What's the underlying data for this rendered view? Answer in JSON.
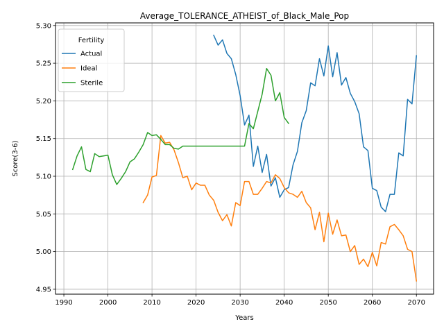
{
  "chart_data": {
    "type": "line",
    "title": "Average_TOLERANCE_ATHEIST_of_Black_Male_Pop",
    "xlabel": "Years",
    "ylabel": "Score(3-6)",
    "xlim": [
      1988.1,
      2073.9
    ],
    "ylim": [
      4.9435,
      5.3035
    ],
    "xticks": [
      1990,
      2000,
      2010,
      2020,
      2030,
      2040,
      2050,
      2060,
      2070
    ],
    "xtick_labels": [
      "1990",
      "2000",
      "2010",
      "2020",
      "2030",
      "2040",
      "2050",
      "2060",
      "2070"
    ],
    "yticks": [
      4.95,
      5.0,
      5.05,
      5.1,
      5.15,
      5.2,
      5.25,
      5.3
    ],
    "ytick_labels": [
      "4.95",
      "5.00",
      "5.05",
      "5.10",
      "5.15",
      "5.20",
      "5.25",
      "5.30"
    ],
    "grid": true,
    "legend": {
      "title": "Fertility",
      "position": "top-left"
    },
    "series": [
      {
        "name": "Actual",
        "color": "#1f77b4",
        "points": [
          [
            2024,
            5.287
          ],
          [
            2025,
            5.274
          ],
          [
            2026,
            5.281
          ],
          [
            2027,
            5.263
          ],
          [
            2028,
            5.256
          ],
          [
            2029,
            5.235
          ],
          [
            2030,
            5.207
          ],
          [
            2031,
            5.168
          ],
          [
            2032,
            5.181
          ],
          [
            2033,
            5.113
          ],
          [
            2034,
            5.14
          ],
          [
            2035,
            5.105
          ],
          [
            2036,
            5.129
          ],
          [
            2037,
            5.087
          ],
          [
            2038,
            5.098
          ],
          [
            2039,
            5.072
          ],
          [
            2040,
            5.082
          ],
          [
            2041,
            5.085
          ],
          [
            2042,
            5.115
          ],
          [
            2043,
            5.133
          ],
          [
            2044,
            5.171
          ],
          [
            2045,
            5.187
          ],
          [
            2046,
            5.224
          ],
          [
            2047,
            5.22
          ],
          [
            2048,
            5.256
          ],
          [
            2049,
            5.233
          ],
          [
            2050,
            5.273
          ],
          [
            2051,
            5.232
          ],
          [
            2052,
            5.264
          ],
          [
            2053,
            5.221
          ],
          [
            2054,
            5.231
          ],
          [
            2055,
            5.21
          ],
          [
            2056,
            5.199
          ],
          [
            2057,
            5.183
          ],
          [
            2058,
            5.139
          ],
          [
            2059,
            5.134
          ],
          [
            2060,
            5.084
          ],
          [
            2061,
            5.081
          ],
          [
            2062,
            5.059
          ],
          [
            2063,
            5.053
          ],
          [
            2064,
            5.076
          ],
          [
            2065,
            5.076
          ],
          [
            2066,
            5.131
          ],
          [
            2067,
            5.127
          ],
          [
            2068,
            5.202
          ],
          [
            2069,
            5.196
          ],
          [
            2070,
            5.26
          ]
        ]
      },
      {
        "name": "Ideal",
        "color": "#ff7f0e",
        "points": [
          [
            2008,
            5.065
          ],
          [
            2009,
            5.075
          ],
          [
            2010,
            5.099
          ],
          [
            2011,
            5.101
          ],
          [
            2012,
            5.154
          ],
          [
            2013,
            5.144
          ],
          [
            2014,
            5.145
          ],
          [
            2015,
            5.135
          ],
          [
            2016,
            5.118
          ],
          [
            2017,
            5.098
          ],
          [
            2018,
            5.1
          ],
          [
            2019,
            5.082
          ],
          [
            2020,
            5.091
          ],
          [
            2021,
            5.088
          ],
          [
            2022,
            5.088
          ],
          [
            2023,
            5.075
          ],
          [
            2024,
            5.068
          ],
          [
            2025,
            5.052
          ],
          [
            2026,
            5.041
          ],
          [
            2027,
            5.049
          ],
          [
            2028,
            5.034
          ],
          [
            2029,
            5.065
          ],
          [
            2030,
            5.061
          ],
          [
            2031,
            5.093
          ],
          [
            2032,
            5.093
          ],
          [
            2033,
            5.076
          ],
          [
            2034,
            5.076
          ],
          [
            2035,
            5.084
          ],
          [
            2036,
            5.093
          ],
          [
            2037,
            5.091
          ],
          [
            2038,
            5.102
          ],
          [
            2039,
            5.097
          ],
          [
            2040,
            5.085
          ],
          [
            2041,
            5.078
          ],
          [
            2042,
            5.076
          ],
          [
            2043,
            5.072
          ],
          [
            2044,
            5.08
          ],
          [
            2045,
            5.065
          ],
          [
            2046,
            5.058
          ],
          [
            2047,
            5.029
          ],
          [
            2048,
            5.052
          ],
          [
            2049,
            5.013
          ],
          [
            2050,
            5.051
          ],
          [
            2051,
            5.023
          ],
          [
            2052,
            5.042
          ],
          [
            2053,
            5.021
          ],
          [
            2054,
            5.022
          ],
          [
            2055,
            5.0
          ],
          [
            2056,
            5.008
          ],
          [
            2057,
            4.983
          ],
          [
            2058,
            4.99
          ],
          [
            2059,
            4.98
          ],
          [
            2060,
            4.999
          ],
          [
            2061,
            4.981
          ],
          [
            2062,
            5.012
          ],
          [
            2063,
            5.01
          ],
          [
            2064,
            5.033
          ],
          [
            2065,
            5.036
          ],
          [
            2066,
            5.029
          ],
          [
            2067,
            5.021
          ],
          [
            2068,
            5.003
          ],
          [
            2069,
            5.0
          ],
          [
            2070,
            4.961
          ]
        ]
      },
      {
        "name": "Sterile",
        "color": "#2ca02c",
        "points": [
          [
            1992,
            5.109
          ],
          [
            1993,
            5.127
          ],
          [
            1994,
            5.139
          ],
          [
            1995,
            5.109
          ],
          [
            1996,
            5.106
          ],
          [
            1997,
            5.13
          ],
          [
            1998,
            5.126
          ],
          [
            1999,
            5.127
          ],
          [
            2000,
            5.128
          ],
          [
            2001,
            5.102
          ],
          [
            2002,
            5.089
          ],
          [
            2003,
            5.097
          ],
          [
            2004,
            5.106
          ],
          [
            2005,
            5.119
          ],
          [
            2006,
            5.123
          ],
          [
            2007,
            5.132
          ],
          [
            2008,
            5.142
          ],
          [
            2009,
            5.158
          ],
          [
            2010,
            5.154
          ],
          [
            2011,
            5.155
          ],
          [
            2012,
            5.149
          ],
          [
            2013,
            5.142
          ],
          [
            2014,
            5.142
          ],
          [
            2015,
            5.137
          ],
          [
            2016,
            5.136
          ],
          [
            2017,
            5.14
          ],
          [
            2018,
            5.14
          ],
          [
            2019,
            5.14
          ],
          [
            2020,
            5.14
          ],
          [
            2021,
            5.14
          ],
          [
            2022,
            5.14
          ],
          [
            2023,
            5.14
          ],
          [
            2024,
            5.14
          ],
          [
            2025,
            5.14
          ],
          [
            2026,
            5.14
          ],
          [
            2027,
            5.14
          ],
          [
            2028,
            5.14
          ],
          [
            2029,
            5.14
          ],
          [
            2030,
            5.14
          ],
          [
            2031,
            5.14
          ],
          [
            2032,
            5.17
          ],
          [
            2033,
            5.163
          ],
          [
            2034,
            5.186
          ],
          [
            2035,
            5.209
          ],
          [
            2036,
            5.243
          ],
          [
            2037,
            5.234
          ],
          [
            2038,
            5.2
          ],
          [
            2039,
            5.211
          ],
          [
            2040,
            5.178
          ],
          [
            2041,
            5.17
          ]
        ]
      }
    ]
  }
}
